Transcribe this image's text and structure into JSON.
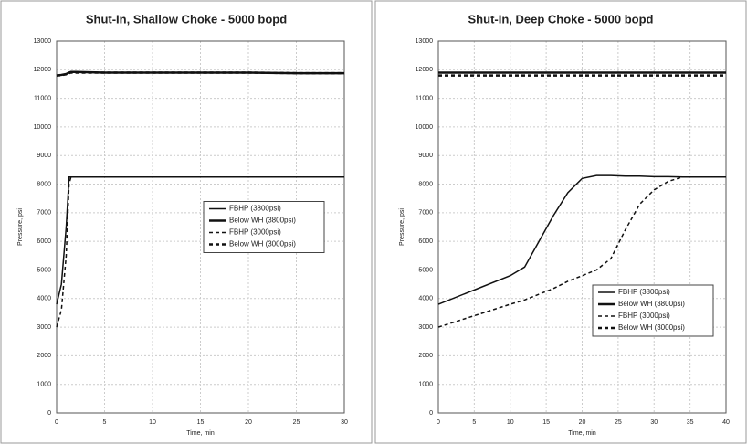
{
  "chart_data": [
    {
      "type": "line",
      "title": "Shut-In, Shallow Choke - 5000 bopd",
      "xlabel": "Time, min",
      "ylabel": "Pressure, psi",
      "x": [
        0,
        0.5,
        1,
        1.3,
        1.5,
        2,
        5,
        10,
        15,
        20,
        25,
        30
      ],
      "series": [
        {
          "name": "FBHP (3800psi)",
          "color": "#111111",
          "dash": false,
          "width": 1.5,
          "values": [
            3800,
            4500,
            6500,
            8250,
            8250,
            8250,
            8250,
            8250,
            8250,
            8250,
            8250,
            8250
          ]
        },
        {
          "name": "Below WH (3800psi)",
          "color": "#111111",
          "dash": false,
          "width": 2.5,
          "values": [
            11800,
            11820,
            11850,
            11900,
            11920,
            11920,
            11900,
            11900,
            11900,
            11900,
            11880,
            11880
          ]
        },
        {
          "name": "FBHP (3000psi)",
          "color": "#111111",
          "dash": true,
          "width": 1.5,
          "values": [
            3000,
            3600,
            5500,
            8000,
            8250,
            8250,
            8250,
            8250,
            8250,
            8250,
            8250,
            8250
          ]
        },
        {
          "name": "Below WH (3000psi)",
          "color": "#111111",
          "dash": true,
          "width": 2.5,
          "values": [
            11800,
            11810,
            11840,
            11880,
            11900,
            11900,
            11900,
            11900,
            11900,
            11900,
            11880,
            11880
          ]
        }
      ],
      "xlim": [
        0,
        30
      ],
      "xticks": [
        0,
        5,
        10,
        15,
        20,
        25,
        30
      ],
      "ylim": [
        0,
        13000
      ],
      "yticks": [
        0,
        1000,
        2000,
        3000,
        4000,
        5000,
        6000,
        7000,
        8000,
        9000,
        10000,
        11000,
        12000,
        13000
      ],
      "grid": true,
      "legend": "center right"
    },
    {
      "type": "line",
      "title": "Shut-In, Deep Choke - 5000 bopd",
      "xlabel": "Time, min",
      "ylabel": "Pressure, psi",
      "x": [
        0,
        5,
        10,
        12,
        14,
        16,
        18,
        20,
        22,
        24,
        26,
        28,
        30,
        32,
        34,
        36,
        40
      ],
      "series": [
        {
          "name": "FBHP (3800psi)",
          "color": "#111111",
          "dash": false,
          "width": 1.5,
          "values": [
            3800,
            4300,
            4800,
            5100,
            6000,
            6900,
            7700,
            8200,
            8300,
            8300,
            8280,
            8280,
            8260,
            8260,
            8250,
            8250,
            8250
          ]
        },
        {
          "name": "Below WH (3800psi)",
          "color": "#111111",
          "dash": false,
          "width": 2.5,
          "values": [
            11900,
            11900,
            11900,
            11900,
            11900,
            11900,
            11900,
            11900,
            11900,
            11900,
            11900,
            11900,
            11900,
            11900,
            11900,
            11900,
            11900
          ]
        },
        {
          "name": "FBHP (3000psi)",
          "color": "#111111",
          "dash": true,
          "width": 1.5,
          "values": [
            3000,
            3400,
            3800,
            3950,
            4150,
            4350,
            4600,
            4800,
            5000,
            5400,
            6400,
            7300,
            7800,
            8100,
            8250,
            8250,
            8250
          ]
        },
        {
          "name": "Below WH (3000psi)",
          "color": "#111111",
          "dash": true,
          "width": 2.5,
          "values": [
            11800,
            11800,
            11800,
            11800,
            11800,
            11800,
            11800,
            11800,
            11800,
            11800,
            11800,
            11800,
            11800,
            11800,
            11800,
            11800,
            11800
          ]
        }
      ],
      "xlim": [
        0,
        40
      ],
      "xticks": [
        0,
        5,
        10,
        15,
        20,
        25,
        30,
        35,
        40
      ],
      "ylim": [
        0,
        13000
      ],
      "yticks": [
        0,
        1000,
        2000,
        3000,
        4000,
        5000,
        6000,
        7000,
        8000,
        9000,
        10000,
        11000,
        12000,
        13000
      ],
      "grid": true,
      "legend": "lower right"
    }
  ]
}
